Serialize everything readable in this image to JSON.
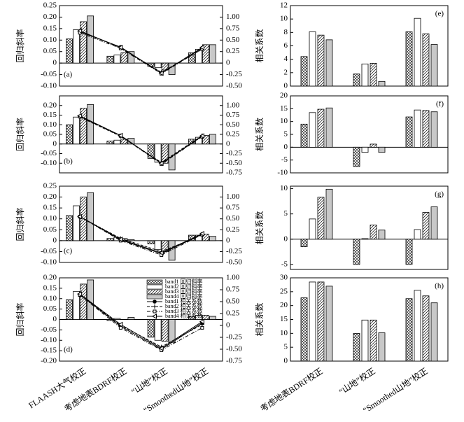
{
  "chart_data": [
    {
      "type": "bar",
      "label": "(a)",
      "ylabel": "回归斜率",
      "ylim": [
        -0.1,
        0.25
      ],
      "yticks": [
        {
          "value": -0.1,
          "label": "-0.10"
        },
        -0.05,
        0,
        0.05,
        {
          "value": 0.1,
          "label": "0.10"
        },
        0.15,
        {
          "value": 0.2,
          "label": "0.20"
        },
        0.25
      ],
      "y2lim": [
        -0.5,
        1.25
      ],
      "y2ticks": [
        {
          "value": -0.5,
          "label": "-0.50"
        },
        -0.25,
        0,
        0.25,
        {
          "value": 0.5,
          "label": "0.50"
        },
        0.75,
        {
          "value": 1,
          "label": "1.00"
        }
      ],
      "series": [
        {
          "pattern": "crosshatch",
          "color": "#ffffff",
          "values": [
            0.105,
            0.03,
            -0.015,
            0.045
          ]
        },
        {
          "pattern": "none",
          "color": "#ffffff",
          "values": [
            0.145,
            0.035,
            -0.02,
            0.06
          ]
        },
        {
          "pattern": "hatch",
          "color": "#ffffff",
          "values": [
            0.18,
            0.045,
            -0.03,
            0.08
          ]
        },
        {
          "pattern": "none",
          "color": "#c8c8c8",
          "values": [
            0.205,
            0.05,
            -0.05,
            0.08
          ]
        },
        {
          "axis": "y2",
          "marker": "circle",
          "dash": "none",
          "color": "#000000",
          "values": [
            0.68,
            0.35,
            -0.22,
            0.33
          ]
        },
        {
          "axis": "y2",
          "marker": "plus",
          "dash": "4 2",
          "color": "#000000",
          "values": [
            0.7,
            0.33,
            -0.2,
            0.3
          ]
        },
        {
          "axis": "y2",
          "marker": "square",
          "dash": "5 2 1 2",
          "color": "#000000",
          "values": [
            0.66,
            0.32,
            -0.23,
            0.31
          ]
        },
        {
          "axis": "y2",
          "marker": "triangle",
          "dash": "none",
          "color": "#000000",
          "values": [
            0.7,
            0.34,
            -0.22,
            0.34
          ]
        }
      ]
    },
    {
      "type": "bar",
      "label": "(b)",
      "ylabel": "回归斜率",
      "ylim": [
        -0.15,
        0.25
      ],
      "yticks": [
        {
          "value": -0.1,
          "label": "-0.10"
        },
        -0.05,
        0,
        0.05,
        {
          "value": 0.1,
          "label": "0.10"
        },
        0.15,
        {
          "value": 0.2,
          "label": "0.20"
        }
      ],
      "y2lim": [
        -0.75,
        1.25
      ],
      "y2ticks": [
        -0.75,
        {
          "value": -0.5,
          "label": "-0.50"
        },
        -0.25,
        0,
        0.25,
        {
          "value": 0.5,
          "label": "0.50"
        },
        0.75,
        {
          "value": 1,
          "label": "1.00"
        }
      ],
      "series": [
        {
          "pattern": "crosshatch",
          "color": "#ffffff",
          "values": [
            0.1,
            0.015,
            -0.075,
            0.025
          ]
        },
        {
          "pattern": "none",
          "color": "#ffffff",
          "values": [
            0.14,
            0.02,
            -0.095,
            0.035
          ]
        },
        {
          "pattern": "hatch",
          "color": "#ffffff",
          "values": [
            0.185,
            0.025,
            -0.1,
            0.045
          ]
        },
        {
          "pattern": "none",
          "color": "#c8c8c8",
          "values": [
            0.205,
            0.03,
            -0.135,
            0.05
          ]
        },
        {
          "axis": "y2",
          "marker": "circle",
          "dash": "none",
          "color": "#000000",
          "values": [
            0.72,
            0.22,
            -0.5,
            0.2
          ]
        },
        {
          "axis": "y2",
          "marker": "plus",
          "dash": "4 2",
          "color": "#000000",
          "values": [
            0.7,
            0.2,
            -0.48,
            0.22
          ]
        },
        {
          "axis": "y2",
          "marker": "square",
          "dash": "5 2 1 2",
          "color": "#000000",
          "values": [
            0.71,
            0.21,
            -0.52,
            0.19
          ]
        },
        {
          "axis": "y2",
          "marker": "triangle",
          "dash": "none",
          "color": "#000000",
          "values": [
            0.73,
            0.22,
            -0.5,
            0.21
          ]
        }
      ]
    },
    {
      "type": "bar",
      "label": "(c)",
      "ylabel": "回归斜率",
      "ylim": [
        -0.1,
        0.25
      ],
      "yticks": [
        {
          "value": -0.1,
          "label": "-0.10"
        },
        -0.05,
        0,
        0.05,
        {
          "value": 0.1,
          "label": "0.10"
        },
        0.15,
        {
          "value": 0.2,
          "label": "0.20"
        },
        0.25
      ],
      "y2lim": [
        -0.5,
        1.25
      ],
      "y2ticks": [
        {
          "value": -0.5,
          "label": "-0.50"
        },
        -0.25,
        0,
        0.25,
        {
          "value": 0.5,
          "label": "0.50"
        },
        0.75,
        {
          "value": 1,
          "label": "1.00"
        }
      ],
      "series": [
        {
          "pattern": "crosshatch",
          "color": "#ffffff",
          "values": [
            0.115,
            0.01,
            -0.015,
            0.025
          ]
        },
        {
          "pattern": "none",
          "color": "#ffffff",
          "values": [
            0.16,
            0.015,
            -0.04,
            0.025
          ]
        },
        {
          "pattern": "hatch",
          "color": "#ffffff",
          "values": [
            0.2,
            0.01,
            -0.05,
            0.03
          ]
        },
        {
          "pattern": "none",
          "color": "#c8c8c8",
          "values": [
            0.22,
            0.005,
            -0.09,
            0.02
          ]
        },
        {
          "axis": "y2",
          "marker": "circle",
          "dash": "none",
          "color": "#000000",
          "values": [
            0.55,
            0.02,
            -0.3,
            0.15
          ]
        },
        {
          "axis": "y2",
          "marker": "plus",
          "dash": "4 2",
          "color": "#000000",
          "values": [
            0.55,
            0.05,
            -0.25,
            0.13
          ]
        },
        {
          "axis": "y2",
          "marker": "square",
          "dash": "5 2 1 2",
          "color": "#000000",
          "values": [
            0.55,
            0.0,
            -0.33,
            0.14
          ]
        },
        {
          "axis": "y2",
          "marker": "triangle",
          "dash": "none",
          "color": "#000000",
          "values": [
            0.55,
            0.03,
            -0.28,
            0.16
          ]
        }
      ]
    },
    {
      "type": "bar",
      "label": "(d)",
      "ylabel": "回归斜率",
      "legend": "upper right",
      "categories": [
        "FLAASH大气校正",
        "考虑地表BDRF校正",
        "“山地”校正",
        "“Smoothed山地”校正"
      ],
      "ylim": [
        -0.2,
        0.2
      ],
      "yticks": [
        {
          "value": -0.2,
          "label": "-0.20"
        },
        -0.15,
        {
          "value": -0.1,
          "label": "-0.10"
        },
        -0.05,
        0,
        0.05,
        {
          "value": 0.1,
          "label": "0.10"
        },
        0.15,
        {
          "value": 0.2,
          "label": "0.20"
        }
      ],
      "y2lim": [
        -0.75,
        1
      ],
      "y2ticks": [
        -0.75,
        {
          "value": -0.5,
          "label": "-0.50"
        },
        -0.25,
        0,
        0.25,
        {
          "value": 0.5,
          "label": "0.50"
        },
        0.75,
        {
          "value": 1,
          "label": "1.00"
        }
      ],
      "series": [
        {
          "name": "band1 回归斜率",
          "pattern": "crosshatch",
          "color": "#ffffff",
          "values": [
            0.095,
            -0.005,
            -0.085,
            0.015
          ]
        },
        {
          "name": "band2 回归斜率",
          "pattern": "none",
          "color": "#ffffff",
          "values": [
            0.135,
            0.005,
            -0.1,
            0.02
          ]
        },
        {
          "name": "band3 回归斜率",
          "pattern": "hatch",
          "color": "#ffffff",
          "values": [
            0.17,
            0.0,
            -0.105,
            0.02
          ]
        },
        {
          "name": "band4 回归斜率",
          "pattern": "none",
          "color": "#c8c8c8",
          "values": [
            0.19,
            0.01,
            -0.11,
            0.015
          ]
        },
        {
          "name": "band1 相关系数",
          "axis": "y2",
          "marker": "circle",
          "dash": "none",
          "color": "#000000",
          "values": [
            0.65,
            -0.02,
            -0.5,
            0.05
          ]
        },
        {
          "name": "band2 相关系数",
          "axis": "y2",
          "marker": "plus",
          "dash": "4 2",
          "color": "#000000",
          "values": [
            0.65,
            0.0,
            -0.45,
            0.02
          ]
        },
        {
          "name": "band3 相关系数",
          "axis": "y2",
          "marker": "square",
          "dash": "5 2 1 2",
          "color": "#000000",
          "values": [
            0.64,
            -0.05,
            -0.52,
            -0.05
          ]
        },
        {
          "name": "band4 相关系数",
          "axis": "y2",
          "marker": "triangle",
          "dash": "none",
          "color": "#000000",
          "values": [
            0.66,
            0.02,
            -0.48,
            0.08
          ]
        }
      ]
    },
    {
      "type": "bar",
      "label": "(e)",
      "ylabel": "相关系数",
      "ylim": [
        0,
        12
      ],
      "yticks": [
        0,
        2,
        4,
        6,
        8,
        10,
        12
      ],
      "series": [
        {
          "pattern": "crosshatch",
          "color": "#ffffff",
          "values": [
            4.4,
            1.8,
            8.1
          ]
        },
        {
          "pattern": "none",
          "color": "#ffffff",
          "values": [
            8.1,
            3.3,
            10.1
          ]
        },
        {
          "pattern": "hatch",
          "color": "#ffffff",
          "values": [
            7.6,
            3.4,
            7.8
          ]
        },
        {
          "pattern": "none",
          "color": "#c8c8c8",
          "values": [
            6.9,
            0.7,
            6.2
          ]
        }
      ]
    },
    {
      "type": "bar",
      "label": "(f)",
      "ylabel": "相关系数",
      "ylim": [
        -10,
        20
      ],
      "yticks": [
        -10,
        -5,
        0,
        5,
        10,
        15,
        20
      ],
      "series": [
        {
          "pattern": "crosshatch",
          "color": "#ffffff",
          "values": [
            9,
            -7.5,
            11.8
          ]
        },
        {
          "pattern": "none",
          "color": "#ffffff",
          "values": [
            13.5,
            -2,
            14.5
          ]
        },
        {
          "pattern": "hatch",
          "color": "#ffffff",
          "values": [
            14.8,
            1.2,
            14.3
          ]
        },
        {
          "pattern": "none",
          "color": "#c8c8c8",
          "values": [
            15.3,
            -2,
            13.8
          ]
        }
      ]
    },
    {
      "type": "bar",
      "label": "(g)",
      "ylabel": "相关系数",
      "ylim": [
        -6,
        10.5
      ],
      "yticks": [
        -5,
        0,
        5,
        10
      ],
      "series": [
        {
          "pattern": "crosshatch",
          "color": "#ffffff",
          "values": [
            -1.5,
            -5,
            -5
          ]
        },
        {
          "pattern": "none",
          "color": "#ffffff",
          "values": [
            4,
            0.1,
            1.9
          ]
        },
        {
          "pattern": "hatch",
          "color": "#ffffff",
          "values": [
            8.3,
            2.8,
            5.3
          ]
        },
        {
          "pattern": "none",
          "color": "#c8c8c8",
          "values": [
            9.9,
            1.8,
            6.4
          ]
        }
      ]
    },
    {
      "type": "bar",
      "label": "(h)",
      "ylabel": "相关系数",
      "categories": [
        "考虑地表BDRF校正",
        "“山地”校正",
        "“Smoothed山地”校正"
      ],
      "ylim": [
        0,
        30
      ],
      "yticks": [
        0,
        5,
        10,
        15,
        20,
        25,
        30
      ],
      "series": [
        {
          "pattern": "crosshatch",
          "color": "#ffffff",
          "values": [
            22.8,
            10,
            22.5
          ]
        },
        {
          "pattern": "none",
          "color": "#ffffff",
          "values": [
            28.5,
            14.8,
            25.5
          ]
        },
        {
          "pattern": "hatch",
          "color": "#ffffff",
          "values": [
            28.5,
            14.8,
            23.5
          ]
        },
        {
          "pattern": "none",
          "color": "#c8c8c8",
          "values": [
            27,
            10.2,
            21
          ]
        }
      ]
    }
  ]
}
